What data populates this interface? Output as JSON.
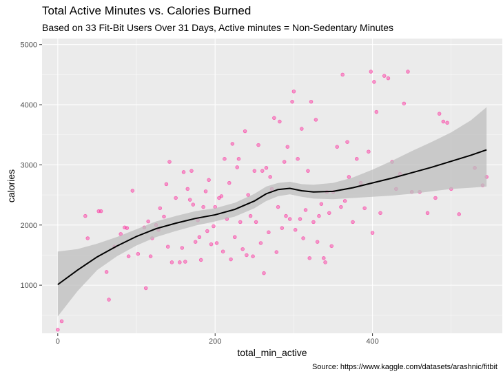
{
  "chart_data": {
    "type": "scatter",
    "title": "Total Active Minutes vs. Calories Burned",
    "subtitle": "Based on 33 Fit-Bit Users Over 31 Days, Active minutes = Non-Sedentary Minutes",
    "caption": "Source: https://www.kaggle.com/datasets/arashnic/fitbit",
    "xlabel": "total_min_active",
    "ylabel": "calories",
    "xlim": [
      -20,
      565
    ],
    "ylim": [
      200,
      5100
    ],
    "x_ticks": [
      0,
      200,
      400
    ],
    "y_ticks": [
      1000,
      2000,
      3000,
      4000,
      5000
    ],
    "grid": true,
    "point_color": "#ff1493",
    "smooth_color": "#000000",
    "band_color": "#bdbdbd",
    "panel_color": "#ebebeb",
    "points": [
      [
        0,
        260
      ],
      [
        5,
        400
      ],
      [
        35,
        2150
      ],
      [
        38,
        1780
      ],
      [
        52,
        2230
      ],
      [
        55,
        2230
      ],
      [
        62,
        1220
      ],
      [
        65,
        760
      ],
      [
        72,
        1640
      ],
      [
        80,
        1850
      ],
      [
        85,
        1960
      ],
      [
        88,
        1950
      ],
      [
        90,
        1480
      ],
      [
        95,
        2570
      ],
      [
        102,
        1520
      ],
      [
        110,
        1960
      ],
      [
        112,
        950
      ],
      [
        115,
        2060
      ],
      [
        118,
        1480
      ],
      [
        120,
        1780
      ],
      [
        125,
        2000
      ],
      [
        128,
        1920
      ],
      [
        130,
        2280
      ],
      [
        135,
        2140
      ],
      [
        138,
        2680
      ],
      [
        140,
        1640
      ],
      [
        142,
        3050
      ],
      [
        145,
        1380
      ],
      [
        150,
        2450
      ],
      [
        155,
        1380
      ],
      [
        158,
        1620
      ],
      [
        160,
        2880
      ],
      [
        162,
        1390
      ],
      [
        165,
        2600
      ],
      [
        168,
        2420
      ],
      [
        170,
        2900
      ],
      [
        172,
        2340
      ],
      [
        175,
        1720
      ],
      [
        178,
        2080
      ],
      [
        180,
        1800
      ],
      [
        182,
        1420
      ],
      [
        185,
        2300
      ],
      [
        188,
        2560
      ],
      [
        190,
        1900
      ],
      [
        192,
        2750
      ],
      [
        195,
        1680
      ],
      [
        198,
        1980
      ],
      [
        200,
        2300
      ],
      [
        202,
        1700
      ],
      [
        205,
        2450
      ],
      [
        208,
        2480
      ],
      [
        210,
        1560
      ],
      [
        212,
        3100
      ],
      [
        215,
        2100
      ],
      [
        218,
        2700
      ],
      [
        220,
        1430
      ],
      [
        222,
        3350
      ],
      [
        225,
        1800
      ],
      [
        228,
        2960
      ],
      [
        230,
        3100
      ],
      [
        232,
        2050
      ],
      [
        235,
        1600
      ],
      [
        238,
        3560
      ],
      [
        240,
        1500
      ],
      [
        242,
        2500
      ],
      [
        245,
        2150
      ],
      [
        248,
        1480
      ],
      [
        250,
        2900
      ],
      [
        252,
        2050
      ],
      [
        255,
        3330
      ],
      [
        258,
        1700
      ],
      [
        260,
        2900
      ],
      [
        262,
        1200
      ],
      [
        265,
        2950
      ],
      [
        268,
        1880
      ],
      [
        270,
        2800
      ],
      [
        272,
        2600
      ],
      [
        275,
        3780
      ],
      [
        278,
        1550
      ],
      [
        280,
        2300
      ],
      [
        282,
        3720
      ],
      [
        285,
        1950
      ],
      [
        288,
        3050
      ],
      [
        290,
        2150
      ],
      [
        292,
        3300
      ],
      [
        295,
        2100
      ],
      [
        298,
        4050
      ],
      [
        300,
        4220
      ],
      [
        302,
        1920
      ],
      [
        305,
        3100
      ],
      [
        308,
        2100
      ],
      [
        310,
        3600
      ],
      [
        312,
        1780
      ],
      [
        315,
        2250
      ],
      [
        318,
        2900
      ],
      [
        320,
        1450
      ],
      [
        322,
        4050
      ],
      [
        325,
        2050
      ],
      [
        328,
        3750
      ],
      [
        330,
        1720
      ],
      [
        332,
        2150
      ],
      [
        335,
        2350
      ],
      [
        338,
        1450
      ],
      [
        340,
        1380
      ],
      [
        342,
        2550
      ],
      [
        345,
        2200
      ],
      [
        348,
        1650
      ],
      [
        350,
        2550
      ],
      [
        355,
        3300
      ],
      [
        360,
        2300
      ],
      [
        362,
        4500
      ],
      [
        365,
        2400
      ],
      [
        368,
        3380
      ],
      [
        370,
        2800
      ],
      [
        375,
        2050
      ],
      [
        380,
        3100
      ],
      [
        385,
        2700
      ],
      [
        390,
        2280
      ],
      [
        395,
        3220
      ],
      [
        398,
        4550
      ],
      [
        400,
        1870
      ],
      [
        402,
        4380
      ],
      [
        405,
        3880
      ],
      [
        410,
        2200
      ],
      [
        415,
        4480
      ],
      [
        420,
        4440
      ],
      [
        425,
        3050
      ],
      [
        430,
        2600
      ],
      [
        435,
        2850
      ],
      [
        440,
        4020
      ],
      [
        445,
        4550
      ],
      [
        450,
        2550
      ],
      [
        460,
        2550
      ],
      [
        470,
        2200
      ],
      [
        480,
        2450
      ],
      [
        485,
        3850
      ],
      [
        490,
        3720
      ],
      [
        495,
        3700
      ],
      [
        500,
        2600
      ],
      [
        510,
        2180
      ],
      [
        530,
        2950
      ],
      [
        540,
        2660
      ],
      [
        545,
        2800
      ]
    ],
    "smooth_x": [
      0,
      25,
      50,
      75,
      100,
      125,
      150,
      175,
      200,
      225,
      250,
      265,
      280,
      295,
      310,
      325,
      350,
      375,
      400,
      425,
      450,
      475,
      500,
      525,
      545
    ],
    "smooth_y": [
      1010,
      1250,
      1470,
      1650,
      1810,
      1940,
      2030,
      2110,
      2170,
      2260,
      2400,
      2520,
      2590,
      2610,
      2570,
      2550,
      2560,
      2620,
      2700,
      2780,
      2870,
      2960,
      3060,
      3160,
      3250
    ],
    "smooth_lower": [
      480,
      900,
      1250,
      1480,
      1660,
      1800,
      1900,
      1990,
      2060,
      2140,
      2280,
      2400,
      2480,
      2510,
      2470,
      2440,
      2430,
      2450,
      2470,
      2490,
      2520,
      2560,
      2600,
      2620,
      2640
    ],
    "smooth_upper": [
      1560,
      1600,
      1690,
      1800,
      1930,
      2060,
      2150,
      2230,
      2280,
      2370,
      2520,
      2640,
      2700,
      2720,
      2680,
      2670,
      2700,
      2790,
      2920,
      3070,
      3230,
      3380,
      3540,
      3740,
      3960
    ]
  }
}
